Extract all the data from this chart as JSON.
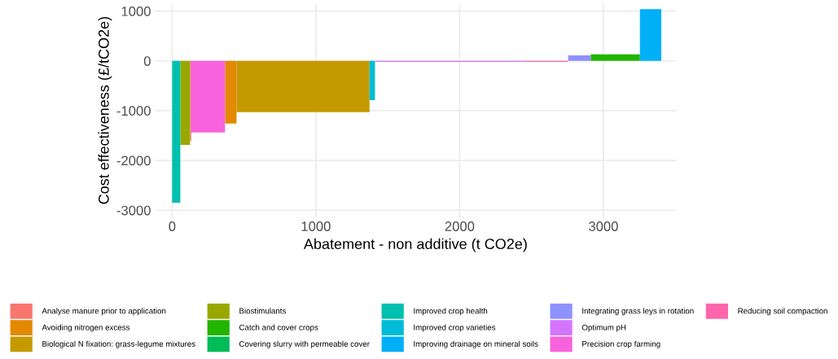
{
  "chart_data": {
    "type": "area",
    "xlabel": "Abatement - non additive (t CO2e)",
    "ylabel": "Cost effectiveness (£/tCO2e)",
    "xlim": [
      -119,
      3507
    ],
    "xticks": [
      0,
      1000,
      2000,
      3000
    ],
    "ylim": [
      -3140,
      1150
    ],
    "yticks": [
      {
        "value": -3000,
        "label": "-3000"
      },
      {
        "value": -2000,
        "label": "-2000"
      },
      {
        "value": -1000,
        "label": "-1000"
      },
      0,
      1000
    ],
    "grid": true,
    "legend": "bottom",
    "series": [
      {
        "name": "Analyse manure prior to application",
        "color": "#f8766d",
        "x": [
          125,
          133
        ],
        "values": [
          -1610,
          -1610
        ]
      },
      {
        "name": "Avoiding nitrogen excess",
        "color": "#e38900",
        "x": [
          368,
          448
        ],
        "values": [
          -1260,
          -1260
        ]
      },
      {
        "name": "Biological N fixation: grass-legume mixtures",
        "color": "#c49a00",
        "x": [
          448,
          1373
        ],
        "values": [
          -1030,
          -1030
        ]
      },
      {
        "name": "Biostimulants",
        "color": "#99a800",
        "x": [
          57,
          125
        ],
        "values": [
          -1690,
          -1690
        ]
      },
      {
        "name": "Catch and cover crops",
        "color": "#22b500",
        "x": [
          2912,
          3254
        ],
        "values": [
          130,
          130
        ]
      },
      {
        "name": "Covering slurry with permeable cover",
        "color": "#00bc56"
      },
      {
        "name": "Improved crop health",
        "color": "#00c0af",
        "x": [
          0,
          57
        ],
        "values": [
          -2850,
          -2850
        ]
      },
      {
        "name": "Improved crop varieties",
        "color": "#00bcd8",
        "x": [
          1373,
          1411
        ],
        "values": [
          -790,
          -790
        ]
      },
      {
        "name": "Improving drainage on mineral soils",
        "color": "#00b0f6",
        "x": [
          3254,
          3403
        ],
        "values": [
          1040,
          1040
        ]
      },
      {
        "name": "Integrating grass leys in rotation",
        "color": "#8f91ff",
        "x": [
          2755,
          2912
        ],
        "values": [
          110,
          110
        ]
      },
      {
        "name": "Optimum pH",
        "color": "#d575fe",
        "x": [
          1411,
          2449
        ],
        "values": [
          -20,
          -20
        ]
      },
      {
        "name": "Precision crop farming",
        "color": "#f962dd",
        "x": [
          130,
          368
        ],
        "values": [
          -1440,
          -1440
        ]
      },
      {
        "name": "Reducing soil compaction",
        "color": "#ff65ac",
        "x": [
          2449,
          2755
        ],
        "values": [
          -20,
          -20
        ]
      }
    ]
  }
}
